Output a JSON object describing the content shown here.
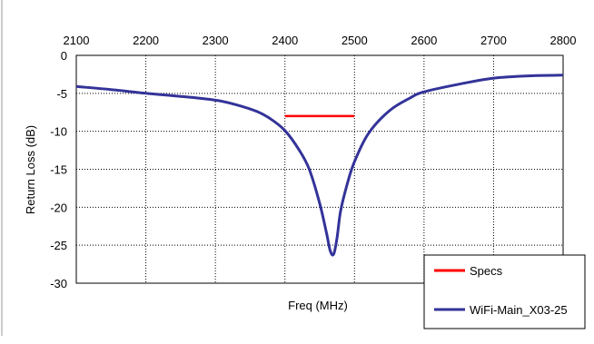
{
  "chart_data": {
    "type": "line",
    "xlabel": "Freq (MHz)",
    "ylabel": "Return Loss (dB)",
    "xlim": [
      2100,
      2800
    ],
    "ylim": [
      -30,
      0
    ],
    "x_ticks": [
      "2100",
      "2200",
      "2300",
      "2400",
      "2500",
      "2600",
      "2700",
      "2800"
    ],
    "y_ticks": [
      "0",
      "-5",
      "-10",
      "-15",
      "-20",
      "-25",
      "-30"
    ],
    "x_axis_position": "top",
    "grid": "dotted",
    "legend_position": "bottom-right",
    "series": [
      {
        "name": "Specs",
        "color": "#ff0000",
        "x": [
          2400,
          2500
        ],
        "y": [
          -8,
          -8
        ]
      },
      {
        "name": "WiFi-Main_X03-25",
        "color": "#333399",
        "x": [
          2100,
          2150,
          2200,
          2250,
          2300,
          2330,
          2360,
          2380,
          2400,
          2420,
          2435,
          2450,
          2460,
          2465,
          2470,
          2475,
          2480,
          2490,
          2500,
          2520,
          2550,
          2580,
          2600,
          2650,
          2700,
          2750,
          2800
        ],
        "y": [
          -4.1,
          -4.5,
          -5.0,
          -5.4,
          -5.9,
          -6.5,
          -7.4,
          -8.4,
          -9.9,
          -12.4,
          -15.0,
          -19.5,
          -23.5,
          -25.7,
          -26.2,
          -24.0,
          -20.5,
          -16.8,
          -14.0,
          -10.3,
          -7.3,
          -5.6,
          -4.8,
          -3.8,
          -3.0,
          -2.7,
          -2.6
        ]
      }
    ]
  }
}
